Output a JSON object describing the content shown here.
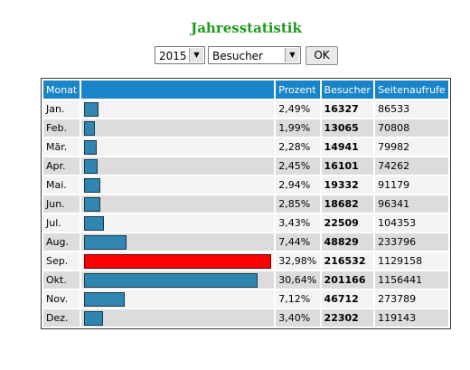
{
  "title": "Jahresstatistik",
  "controls": {
    "year": "2015",
    "metric": "Besucher",
    "ok_label": "OK"
  },
  "table": {
    "headers": {
      "month": "Monat",
      "bar": "",
      "percent": "Prozent",
      "visitors": "Besucher",
      "pageviews": "Seitenaufrufe"
    },
    "rows": [
      {
        "month": "Jan.",
        "percent": "2,49%",
        "visitors": "16327",
        "pageviews": "86533",
        "share": 2.49
      },
      {
        "month": "Feb.",
        "percent": "1,99%",
        "visitors": "13065",
        "pageviews": "70808",
        "share": 1.99
      },
      {
        "month": "Mär.",
        "percent": "2,28%",
        "visitors": "14941",
        "pageviews": "79982",
        "share": 2.28
      },
      {
        "month": "Apr.",
        "percent": "2,45%",
        "visitors": "16101",
        "pageviews": "74262",
        "share": 2.45
      },
      {
        "month": "Mai.",
        "percent": "2,94%",
        "visitors": "19332",
        "pageviews": "91179",
        "share": 2.94
      },
      {
        "month": "Jun.",
        "percent": "2,85%",
        "visitors": "18682",
        "pageviews": "96341",
        "share": 2.85
      },
      {
        "month": "Jul.",
        "percent": "3,43%",
        "visitors": "22509",
        "pageviews": "104353",
        "share": 3.43
      },
      {
        "month": "Aug.",
        "percent": "7,44%",
        "visitors": "48829",
        "pageviews": "233796",
        "share": 7.44
      },
      {
        "month": "Sep.",
        "percent": "32,98%",
        "visitors": "216532",
        "pageviews": "1129158",
        "share": 32.98
      },
      {
        "month": "Okt.",
        "percent": "30,64%",
        "visitors": "201166",
        "pageviews": "1156441",
        "share": 30.64
      },
      {
        "month": "Nov.",
        "percent": "7,12%",
        "visitors": "46712",
        "pageviews": "273789",
        "share": 7.12
      },
      {
        "month": "Dez.",
        "percent": "3,40%",
        "visitors": "22302",
        "pageviews": "119143",
        "share": 3.4
      }
    ]
  },
  "colors": {
    "title": "#1e9a1e",
    "header": "#1a84c8",
    "bar": "#2f86b0",
    "bar_max": "#ff0000"
  }
}
